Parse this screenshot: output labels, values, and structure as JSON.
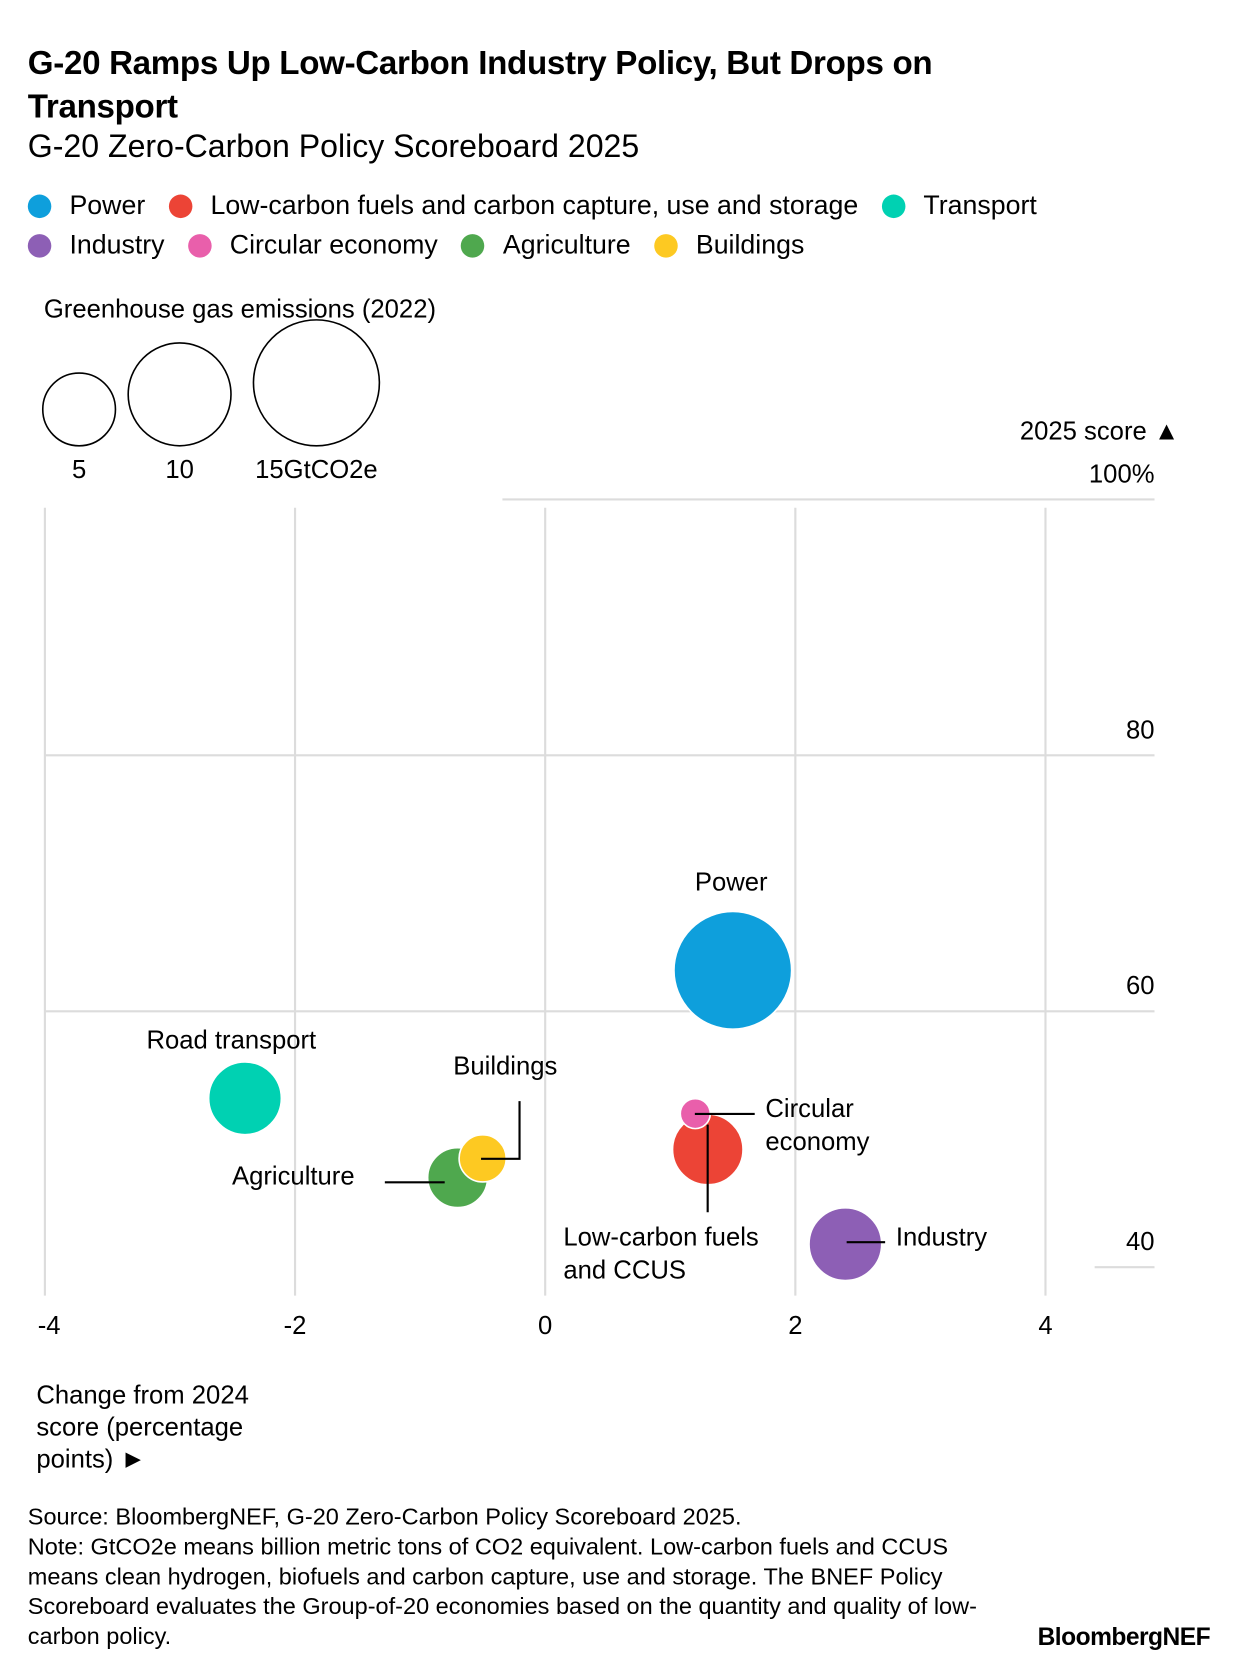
{
  "title": "G-20 Ramps Up Low-Carbon Industry Policy, But Drops on Transport",
  "subtitle": "G-20 Zero-Carbon Policy Scoreboard 2025",
  "legend": [
    {
      "label": "Power",
      "color": "#0e9fdc"
    },
    {
      "label": "Low-carbon fuels and carbon capture, use and storage",
      "color": "#ec4436"
    },
    {
      "label": "Transport",
      "color": "#00d1b2"
    },
    {
      "label": "Industry",
      "color": "#8d5fb5"
    },
    {
      "label": "Circular economy",
      "color": "#e95fab"
    },
    {
      "label": "Agriculture",
      "color": "#4fa84e"
    },
    {
      "label": "Buildings",
      "color": "#fdc922"
    }
  ],
  "size_legend": {
    "title": "Greenhouse gas emissions (2022)",
    "values": [
      5,
      10,
      15
    ],
    "labels": [
      "5",
      "10",
      "15GtCO2e"
    ]
  },
  "chart_data": {
    "type": "scatter",
    "subtype": "bubble",
    "xlabel": "Change from 2024 score (percentage points) ►",
    "ylabel": "2025 score ▲",
    "xlim": [
      -4,
      4.6
    ],
    "ylim": [
      37.5,
      100
    ],
    "x_ticks": [
      -4,
      -2,
      0,
      2,
      4
    ],
    "x_tick_labels": [
      "-4",
      "-2",
      "0",
      "2",
      "4"
    ],
    "y_ticks": [
      40,
      60,
      80,
      100
    ],
    "y_tick_labels": [
      "40",
      "60",
      "80",
      "100%"
    ],
    "grid": true,
    "points": [
      {
        "label": "Power",
        "x": 1.5,
        "y": 63.2,
        "emissions": 13.1,
        "color": "#0e9fdc"
      },
      {
        "label": "Road transport",
        "x": -2.4,
        "y": 53.2,
        "emissions": 5.0,
        "color": "#00d1b2"
      },
      {
        "label": "Agriculture",
        "x": -0.7,
        "y": 47.0,
        "emissions": 3.4,
        "color": "#4fa84e"
      },
      {
        "label": "Buildings",
        "x": -0.5,
        "y": 48.5,
        "emissions": 2.1,
        "color": "#fdc922"
      },
      {
        "label": "Low-carbon fuels and CCUS",
        "x": 1.3,
        "y": 49.2,
        "emissions": 4.7,
        "color": "#ec4436"
      },
      {
        "label": "Circular economy",
        "x": 1.2,
        "y": 52.0,
        "emissions": 0.85,
        "color": "#e95fab"
      },
      {
        "label": "Industry",
        "x": 2.4,
        "y": 41.8,
        "emissions": 5.0,
        "color": "#8d5fb5"
      }
    ]
  },
  "annotations": {
    "power": "Power",
    "road": "Road transport",
    "buildings": "Buildings",
    "agriculture": "Agriculture",
    "circular1": "Circular",
    "circular2": "economy",
    "lowcarbon1": "Low-carbon fuels",
    "lowcarbon2": "and CCUS",
    "industry": "Industry"
  },
  "xlabel_lines": [
    "Change from 2024",
    "score (percentage",
    "points) ►"
  ],
  "footer": {
    "source": "Source: BloombergNEF, G-20 Zero-Carbon Policy Scoreboard 2025.",
    "note": "Note: GtCO2e means billion metric tons of CO2 equivalent. Low-carbon fuels and CCUS means clean hydrogen, biofuels and carbon capture, use and storage. The BNEF Policy Scoreboard evaluates the Group-of-20 economies based on the quantity and quality of low-carbon policy."
  },
  "logo": "BloombergNEF"
}
